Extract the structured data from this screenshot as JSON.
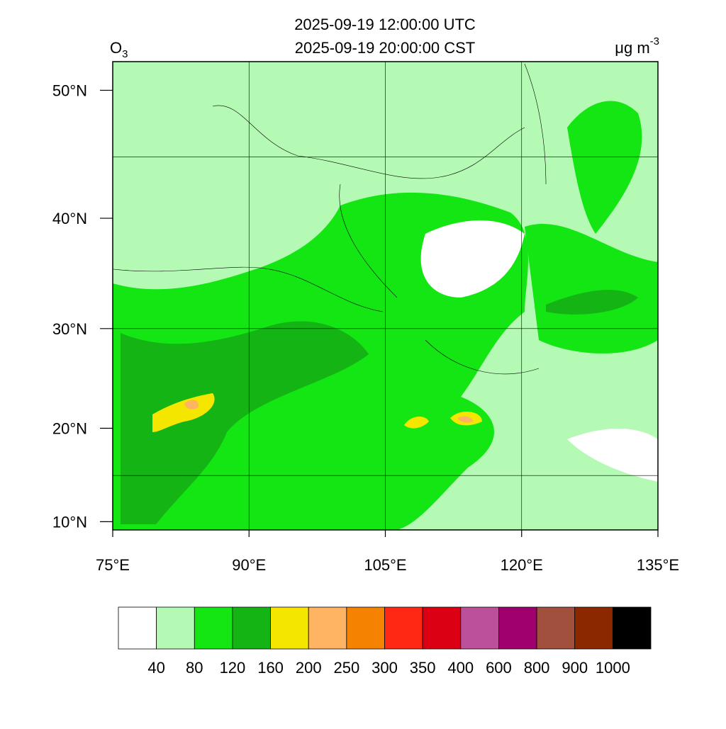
{
  "title": [
    "2025-09-19 12:00:00 UTC",
    "2025-09-19 20:00:00 CST"
  ],
  "variable": {
    "base": "O",
    "subscript": "3"
  },
  "units": {
    "text": "μg m",
    "superscript": "-3"
  },
  "map": {
    "xlim": [
      75,
      135
    ],
    "ylim": [
      9.1,
      52
    ],
    "xticks": [
      {
        "value": 75,
        "label": "75°E"
      },
      {
        "value": 90,
        "label": "90°E"
      },
      {
        "value": 105,
        "label": "105°E"
      },
      {
        "value": 120,
        "label": "120°E"
      },
      {
        "value": 135,
        "label": "135°E"
      }
    ],
    "yticks": [
      {
        "value": 10,
        "label": "10°N"
      },
      {
        "value": 20,
        "label": "20°N"
      },
      {
        "value": 30,
        "label": "30°N"
      },
      {
        "value": 40,
        "label": "40°N"
      },
      {
        "value": 50,
        "label": "50°N"
      }
    ],
    "grid_lon": [
      90,
      105,
      120
    ],
    "grid_lat": [
      15,
      30,
      45
    ]
  },
  "colorbar": {
    "colors": [
      "#ffffff",
      "#b4fab4",
      "#14e614",
      "#14b414",
      "#f5e600",
      "#ffb464",
      "#f58200",
      "#ff2814",
      "#dc0014",
      "#bd509b",
      "#a0006e",
      "#a0503c",
      "#8c2800",
      "#000000"
    ],
    "labels": [
      "40",
      "80",
      "120",
      "160",
      "200",
      "250",
      "300",
      "350",
      "400",
      "600",
      "800",
      "900",
      "1000"
    ]
  }
}
